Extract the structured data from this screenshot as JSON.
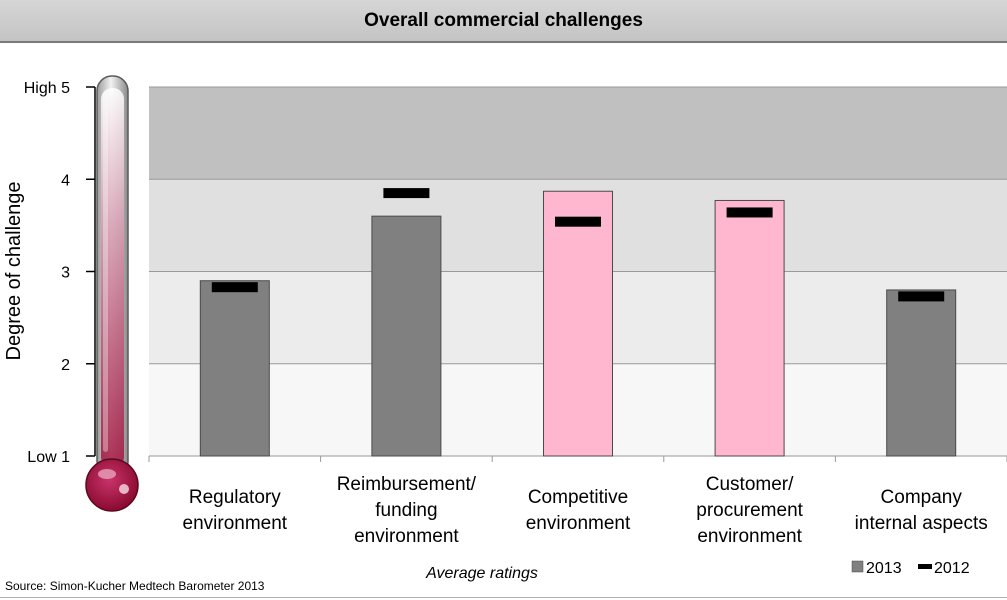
{
  "header": {
    "title": "Overall commercial challenges"
  },
  "source": "Source: Simon-Kucher Medtech Barometer 2013",
  "chart_data": {
    "type": "bar",
    "title": "",
    "ylabel": "Degree of challenge",
    "xlabel": "Average ratings",
    "ylim": [
      1,
      5
    ],
    "yticks": [
      {
        "value": 5,
        "label": "High 5"
      },
      {
        "value": 4,
        "label": "4"
      },
      {
        "value": 3,
        "label": "3"
      },
      {
        "value": 2,
        "label": "2"
      },
      {
        "value": 1,
        "label": "Low 1"
      }
    ],
    "categories": [
      [
        "Regulatory",
        "environment"
      ],
      [
        "Reimbursement/",
        "funding",
        "environment"
      ],
      [
        "Competitive",
        "environment"
      ],
      [
        "Customer/",
        "procurement",
        "environment"
      ],
      [
        "Company",
        "internal aspects"
      ]
    ],
    "series": [
      {
        "name": "2013",
        "values": [
          2.9,
          3.6,
          3.87,
          3.77,
          2.8
        ],
        "color": "#808080"
      },
      {
        "name": "2012",
        "values": [
          2.83,
          3.85,
          3.54,
          3.64,
          2.73
        ],
        "color": "#000000"
      }
    ],
    "highlight_color": "#ffb6cf",
    "highlighted": [
      false,
      false,
      true,
      true,
      false
    ],
    "bands": [
      {
        "from": 1,
        "to": 2,
        "color": "#f7f7f7"
      },
      {
        "from": 2,
        "to": 3,
        "color": "#ececec"
      },
      {
        "from": 3,
        "to": 4,
        "color": "#e0e0e0"
      },
      {
        "from": 4,
        "to": 5,
        "color": "#c0c0c0"
      }
    ],
    "legend_position": "bottom-right",
    "decoration": "thermometer-icon"
  }
}
